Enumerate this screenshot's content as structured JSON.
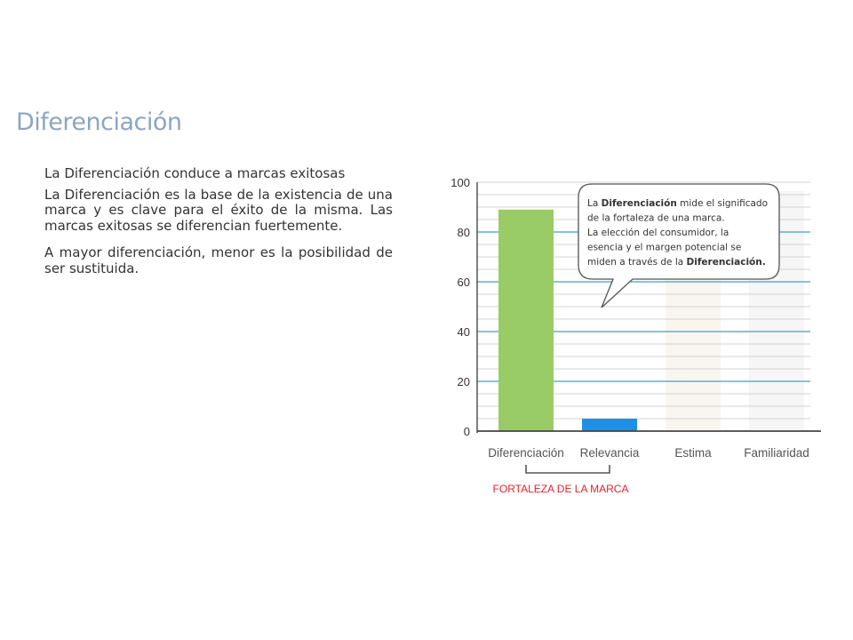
{
  "page": {
    "title": "Diferenciación",
    "subtitle": "La Diferenciación conduce a marcas exitosas",
    "paragraphs": [
      "La Diferenciación es la base de la existencia de una marca y es clave para el éxito de la misma. Las marcas exitosas se diferencian fuertemente.",
      "A mayor diferenciación, menor es la posibilidad de ser sustituida."
    ]
  },
  "chart_data": {
    "type": "bar",
    "categories": [
      "Diferenciación",
      "Relevancia",
      "Estima",
      "Familiaridad"
    ],
    "values": [
      89,
      5,
      null,
      null
    ],
    "bar_colors": [
      "#99cc66",
      "#1e90e8",
      "#f7f2ea",
      "#f2f2f2"
    ],
    "yticks": [
      0,
      20,
      40,
      60,
      80,
      100
    ],
    "ylim": [
      0,
      100
    ],
    "grid": true,
    "bracket_label": "FORTALEZA DE LA MARCA",
    "bracket_color": "#e8212b",
    "callout": {
      "lines": [
        [
          {
            "t": "La "
          },
          {
            "t": "Diferenciación",
            "b": true
          },
          {
            "t": " mide el significado"
          }
        ],
        [
          {
            "t": "de la fortaleza de una marca."
          }
        ],
        [
          {
            "t": "La elección del consumidor, la"
          }
        ],
        [
          {
            "t": "esencia y el margen potencial se"
          }
        ],
        [
          {
            "t": "miden a través de la "
          },
          {
            "t": "Diferenciación.",
            "b": true
          }
        ]
      ]
    }
  }
}
